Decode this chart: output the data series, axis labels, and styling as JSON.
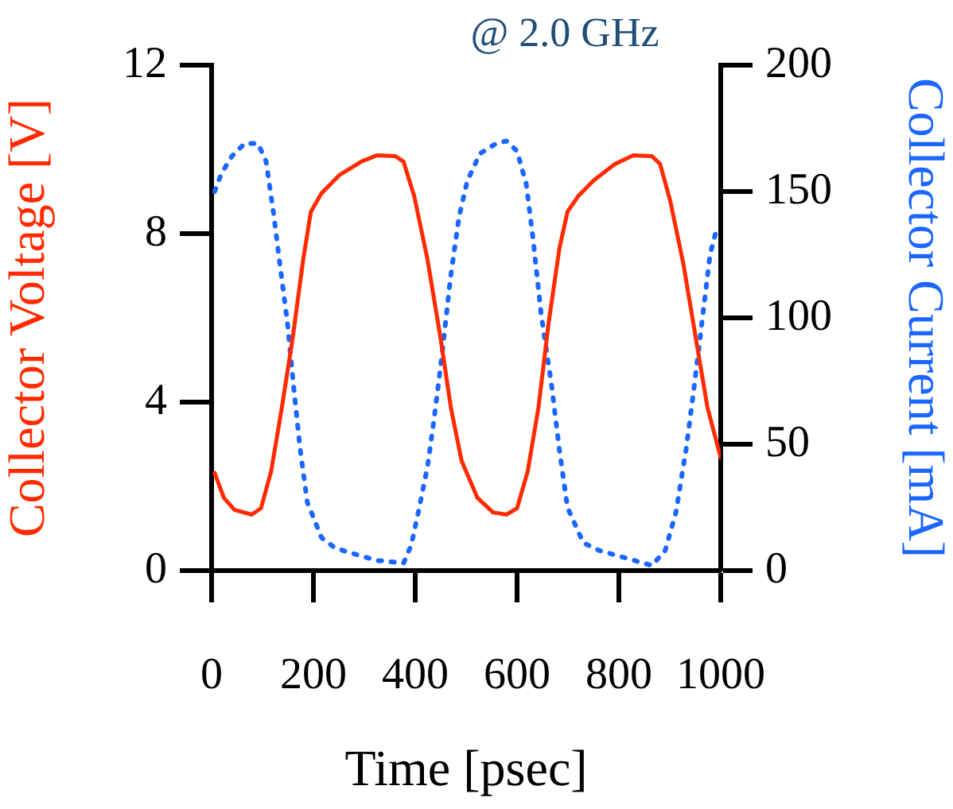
{
  "chart_data": {
    "type": "line",
    "xlabel": "Time [psec]",
    "ylabel": "Collector Voltage [V]",
    "y2label": "Collector Current [mA]",
    "annotations": [
      "@ 2.0 GHz"
    ],
    "xlim": [
      0,
      1000
    ],
    "xticks": [
      0,
      200,
      400,
      600,
      800,
      1000
    ],
    "ylim": [
      0,
      12
    ],
    "yticks": [
      0,
      4,
      8,
      12
    ],
    "y2lim": [
      0,
      200
    ],
    "y2ticks": [
      0,
      50,
      100,
      150,
      200
    ],
    "grid": false,
    "legend": false,
    "marker": "none",
    "series": [
      {
        "color": "#ff2a00",
        "line_style": "solid",
        "axis": "y",
        "x": [
          6,
          24,
          45,
          79,
          97,
          117,
          138,
          159,
          180,
          195,
          216,
          252,
          294,
          325,
          361,
          377,
          398,
          424,
          450,
          470,
          491,
          522,
          553,
          579,
          600,
          621,
          642,
          662,
          683,
          699,
          720,
          751,
          792,
          828,
          865,
          881,
          901,
          927,
          953,
          974,
          1000
        ],
        "values": [
          2.32,
          1.73,
          1.44,
          1.33,
          1.48,
          2.36,
          3.87,
          5.5,
          7.39,
          8.52,
          8.96,
          9.4,
          9.71,
          9.86,
          9.84,
          9.71,
          8.89,
          7.39,
          5.5,
          3.87,
          2.61,
          1.73,
          1.38,
          1.33,
          1.48,
          2.36,
          3.87,
          5.88,
          7.64,
          8.52,
          8.89,
          9.27,
          9.65,
          9.86,
          9.84,
          9.65,
          8.77,
          7.26,
          5.38,
          3.87,
          2.68
        ]
      },
      {
        "color": "#1a66ff",
        "line_style": "dotted",
        "axis": "y2",
        "x": [
          6,
          19,
          40,
          65,
          91,
          107,
          122,
          133,
          149,
          161,
          174,
          188,
          216,
          242,
          273,
          325,
          377,
          392,
          406,
          424,
          437,
          450,
          470,
          486,
          502,
          527,
          559,
          579,
          600,
          618,
          631,
          647,
          668,
          683,
          699,
          730,
          761,
          813,
          865,
          891,
          912,
          932,
          948,
          963,
          979,
          993
        ],
        "values": [
          150,
          157,
          164,
          169,
          169,
          162,
          141,
          123,
          98,
          73,
          48,
          27,
          13,
          9,
          7,
          4,
          3,
          10,
          23,
          41,
          60,
          81,
          117,
          140,
          154,
          165,
          169,
          170,
          166,
          153,
          132,
          102,
          73,
          48,
          25,
          11,
          8,
          5,
          2,
          8,
          23,
          48,
          73,
          98,
          125,
          136
        ]
      }
    ]
  }
}
